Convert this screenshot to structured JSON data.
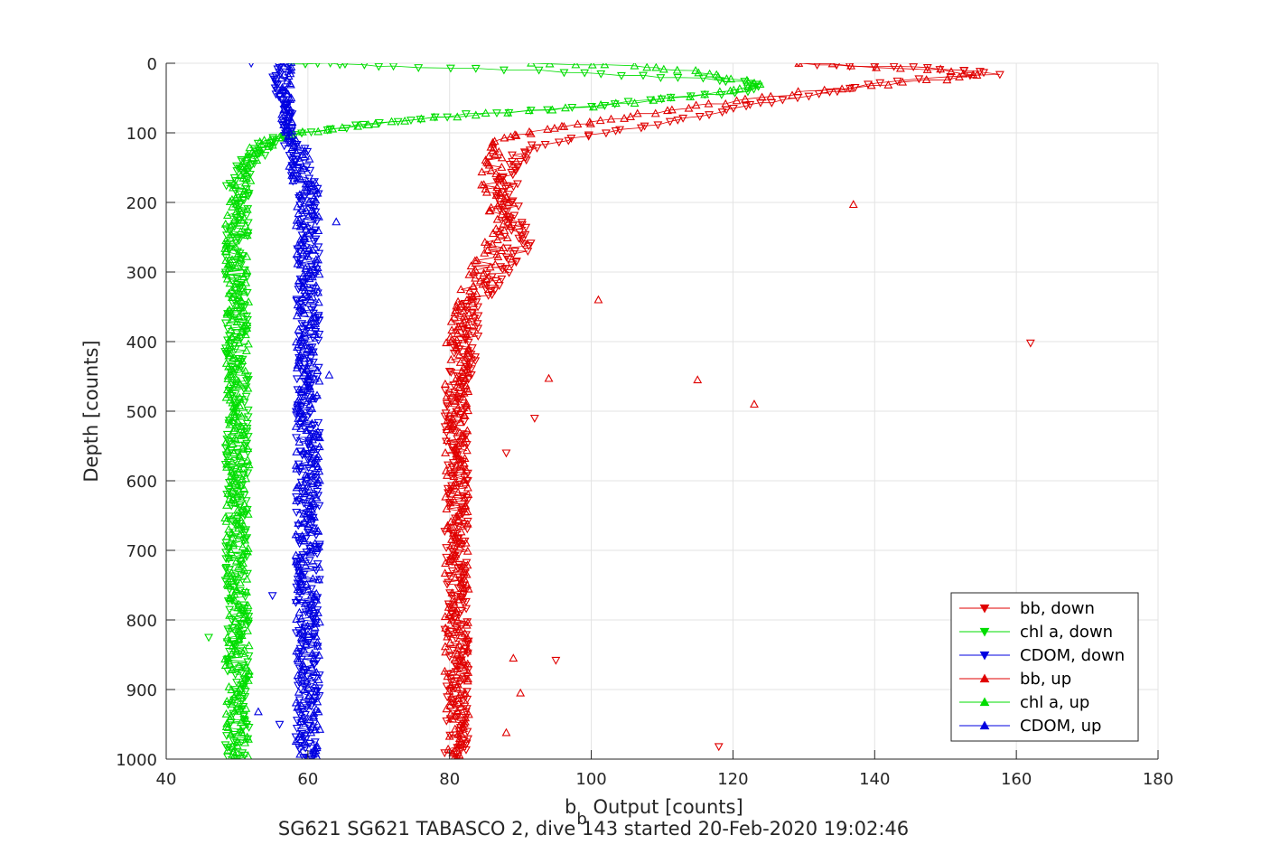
{
  "chart_data": {
    "type": "scatter",
    "title": "",
    "xlabel_main": "b",
    "xlabel_sub": "b",
    "xlabel_rest": "  Output [counts]",
    "ylabel": "Depth [counts]",
    "caption": "SG621 SG621 TABASCO 2, dive 143 started 20-Feb-2020 19:02:46",
    "xlim": [
      40,
      180
    ],
    "ylim": [
      0,
      1000
    ],
    "y_reversed": true,
    "xticks": [
      40,
      60,
      80,
      100,
      120,
      140,
      160,
      180
    ],
    "yticks": [
      0,
      100,
      200,
      300,
      400,
      500,
      600,
      700,
      800,
      900,
      1000
    ],
    "grid": true,
    "legend_position": "bottom-right",
    "series": [
      {
        "name": "bb, down",
        "color": "#e00000",
        "marker": "triangle-down",
        "points": [
          [
            129,
            0
          ],
          [
            137,
            3
          ],
          [
            145,
            6
          ],
          [
            152,
            9
          ],
          [
            157,
            15
          ],
          [
            140,
            28
          ],
          [
            132,
            45
          ],
          [
            124,
            58
          ],
          [
            118,
            70
          ],
          [
            108,
            90
          ],
          [
            100,
            102
          ],
          [
            93,
            118
          ],
          [
            90,
            135
          ],
          [
            89,
            150
          ],
          [
            88,
            165
          ],
          [
            88,
            180
          ],
          [
            88,
            200
          ],
          [
            89,
            220
          ],
          [
            90,
            240
          ],
          [
            90,
            260
          ],
          [
            89,
            280
          ],
          [
            87,
            300
          ],
          [
            86,
            320
          ],
          [
            84,
            340
          ],
          [
            83,
            360
          ],
          [
            83,
            380
          ],
          [
            82,
            400
          ],
          [
            82,
            430
          ],
          [
            81,
            460
          ],
          [
            81,
            490
          ],
          [
            81,
            520
          ],
          [
            81,
            550
          ],
          [
            81,
            580
          ],
          [
            81,
            610
          ],
          [
            81,
            640
          ],
          [
            81,
            670
          ],
          [
            81,
            700
          ],
          [
            81,
            730
          ],
          [
            81,
            760
          ],
          [
            81,
            790
          ],
          [
            81,
            820
          ],
          [
            81,
            850
          ],
          [
            81,
            880
          ],
          [
            81,
            910
          ],
          [
            81,
            940
          ],
          [
            81,
            970
          ],
          [
            81,
            1000
          ]
        ],
        "outliers": [
          [
            162,
            402
          ],
          [
            92,
            510
          ],
          [
            88,
            560
          ],
          [
            95,
            858
          ],
          [
            118,
            982
          ]
        ]
      },
      {
        "name": "chl a, down",
        "color": "#00dd00",
        "marker": "triangle-down",
        "points": [
          [
            58,
            0
          ],
          [
            62,
            0
          ],
          [
            66,
            2
          ],
          [
            72,
            5
          ],
          [
            84,
            8
          ],
          [
            96,
            12
          ],
          [
            108,
            18
          ],
          [
            118,
            24
          ],
          [
            124,
            30
          ],
          [
            122,
            40
          ],
          [
            112,
            50
          ],
          [
            102,
            60
          ],
          [
            92,
            68
          ],
          [
            80,
            76
          ],
          [
            70,
            86
          ],
          [
            62,
            96
          ],
          [
            56,
            106
          ],
          [
            54,
            116
          ],
          [
            53,
            126
          ],
          [
            52,
            140
          ],
          [
            51,
            160
          ],
          [
            50,
            180
          ],
          [
            50,
            210
          ],
          [
            50,
            240
          ],
          [
            50,
            270
          ],
          [
            50,
            300
          ],
          [
            50,
            330
          ],
          [
            50,
            360
          ],
          [
            50,
            390
          ],
          [
            50,
            420
          ],
          [
            50,
            450
          ],
          [
            50,
            480
          ],
          [
            50,
            510
          ],
          [
            50,
            540
          ],
          [
            50,
            570
          ],
          [
            50,
            600
          ],
          [
            50,
            630
          ],
          [
            50,
            660
          ],
          [
            50,
            690
          ],
          [
            50,
            720
          ],
          [
            50,
            750
          ],
          [
            50,
            780
          ],
          [
            50,
            810
          ],
          [
            50,
            840
          ],
          [
            50,
            870
          ],
          [
            50,
            900
          ],
          [
            50,
            930
          ],
          [
            50,
            960
          ],
          [
            50,
            1000
          ]
        ],
        "outliers": [
          [
            46,
            825
          ]
        ]
      },
      {
        "name": "CDOM, down",
        "color": "#0000e0",
        "marker": "triangle-down",
        "points": [
          [
            56,
            0
          ],
          [
            55,
            20
          ],
          [
            56,
            40
          ],
          [
            57,
            60
          ],
          [
            57,
            80
          ],
          [
            57,
            100
          ],
          [
            58,
            120
          ],
          [
            59,
            140
          ],
          [
            59,
            160
          ],
          [
            60,
            180
          ],
          [
            60,
            200
          ],
          [
            60,
            230
          ],
          [
            60,
            260
          ],
          [
            60,
            290
          ],
          [
            60,
            320
          ],
          [
            60,
            350
          ],
          [
            60,
            380
          ],
          [
            60,
            410
          ],
          [
            60,
            440
          ],
          [
            60,
            470
          ],
          [
            60,
            500
          ],
          [
            60,
            530
          ],
          [
            60,
            560
          ],
          [
            60,
            590
          ],
          [
            60,
            620
          ],
          [
            60,
            650
          ],
          [
            60,
            680
          ],
          [
            60,
            710
          ],
          [
            60,
            740
          ],
          [
            60,
            770
          ],
          [
            60,
            800
          ],
          [
            60,
            830
          ],
          [
            60,
            860
          ],
          [
            60,
            890
          ],
          [
            60,
            920
          ],
          [
            60,
            950
          ],
          [
            60,
            980
          ],
          [
            60,
            1000
          ]
        ],
        "outliers": [
          [
            52,
            0
          ],
          [
            55,
            765
          ],
          [
            56,
            950
          ]
        ]
      },
      {
        "name": "bb, up",
        "color": "#e00000",
        "marker": "triangle-up",
        "points": [
          [
            130,
            0
          ],
          [
            140,
            5
          ],
          [
            150,
            10
          ],
          [
            155,
            18
          ],
          [
            142,
            30
          ],
          [
            130,
            42
          ],
          [
            120,
            55
          ],
          [
            112,
            66
          ],
          [
            104,
            78
          ],
          [
            98,
            88
          ],
          [
            92,
            98
          ],
          [
            87,
            108
          ],
          [
            86,
            125
          ],
          [
            86,
            145
          ],
          [
            86,
            165
          ],
          [
            86,
            185
          ],
          [
            87,
            205
          ],
          [
            87,
            225
          ],
          [
            87,
            245
          ],
          [
            86,
            265
          ],
          [
            85,
            285
          ],
          [
            84,
            305
          ],
          [
            83,
            325
          ],
          [
            82,
            345
          ],
          [
            82,
            365
          ],
          [
            81,
            385
          ],
          [
            81,
            405
          ],
          [
            81,
            430
          ],
          [
            81,
            460
          ],
          [
            81,
            490
          ],
          [
            81,
            520
          ],
          [
            81,
            550
          ],
          [
            81,
            580
          ],
          [
            81,
            610
          ],
          [
            81,
            640
          ],
          [
            81,
            670
          ],
          [
            81,
            700
          ],
          [
            81,
            730
          ],
          [
            81,
            760
          ],
          [
            81,
            790
          ],
          [
            81,
            820
          ],
          [
            81,
            850
          ],
          [
            81,
            880
          ],
          [
            81,
            910
          ],
          [
            81,
            940
          ],
          [
            81,
            970
          ],
          [
            81,
            1000
          ]
        ],
        "outliers": [
          [
            137,
            203
          ],
          [
            101,
            340
          ],
          [
            94,
            453
          ],
          [
            115,
            455
          ],
          [
            123,
            490
          ],
          [
            89,
            855
          ],
          [
            90,
            905
          ],
          [
            88,
            962
          ]
        ]
      },
      {
        "name": "chl a, up",
        "color": "#00dd00",
        "marker": "triangle-up",
        "points": [
          [
            92,
            0
          ],
          [
            100,
            2
          ],
          [
            108,
            6
          ],
          [
            114,
            12
          ],
          [
            118,
            20
          ],
          [
            124,
            30
          ],
          [
            120,
            40
          ],
          [
            110,
            52
          ],
          [
            100,
            62
          ],
          [
            88,
            70
          ],
          [
            78,
            78
          ],
          [
            70,
            86
          ],
          [
            64,
            94
          ],
          [
            58,
            102
          ],
          [
            55,
            110
          ],
          [
            53,
            120
          ],
          [
            52,
            135
          ],
          [
            51,
            155
          ],
          [
            50,
            175
          ],
          [
            50,
            200
          ],
          [
            50,
            230
          ],
          [
            50,
            260
          ],
          [
            50,
            290
          ],
          [
            50,
            320
          ],
          [
            50,
            350
          ],
          [
            50,
            380
          ],
          [
            50,
            410
          ],
          [
            50,
            440
          ],
          [
            50,
            470
          ],
          [
            50,
            500
          ],
          [
            50,
            530
          ],
          [
            50,
            560
          ],
          [
            50,
            590
          ],
          [
            50,
            620
          ],
          [
            50,
            650
          ],
          [
            50,
            680
          ],
          [
            50,
            710
          ],
          [
            50,
            740
          ],
          [
            50,
            770
          ],
          [
            50,
            800
          ],
          [
            50,
            830
          ],
          [
            50,
            860
          ],
          [
            50,
            890
          ],
          [
            50,
            920
          ],
          [
            50,
            950
          ],
          [
            50,
            980
          ],
          [
            50,
            1000
          ]
        ],
        "outliers": []
      },
      {
        "name": "CDOM, up",
        "color": "#0000e0",
        "marker": "triangle-up",
        "points": [
          [
            57,
            0
          ],
          [
            57,
            20
          ],
          [
            57,
            40
          ],
          [
            57,
            60
          ],
          [
            57,
            80
          ],
          [
            57,
            100
          ],
          [
            58,
            120
          ],
          [
            59,
            140
          ],
          [
            59,
            160
          ],
          [
            60,
            180
          ],
          [
            60,
            200
          ],
          [
            60,
            230
          ],
          [
            60,
            260
          ],
          [
            60,
            290
          ],
          [
            60,
            320
          ],
          [
            60,
            350
          ],
          [
            60,
            380
          ],
          [
            60,
            410
          ],
          [
            60,
            440
          ],
          [
            60,
            470
          ],
          [
            60,
            500
          ],
          [
            60,
            530
          ],
          [
            60,
            560
          ],
          [
            60,
            590
          ],
          [
            60,
            620
          ],
          [
            60,
            650
          ],
          [
            60,
            680
          ],
          [
            60,
            710
          ],
          [
            60,
            740
          ],
          [
            60,
            770
          ],
          [
            60,
            800
          ],
          [
            60,
            830
          ],
          [
            60,
            860
          ],
          [
            60,
            890
          ],
          [
            60,
            920
          ],
          [
            60,
            950
          ],
          [
            60,
            980
          ],
          [
            60,
            1000
          ]
        ],
        "outliers": [
          [
            64,
            228
          ],
          [
            63,
            448
          ],
          [
            53,
            932
          ]
        ]
      }
    ]
  }
}
